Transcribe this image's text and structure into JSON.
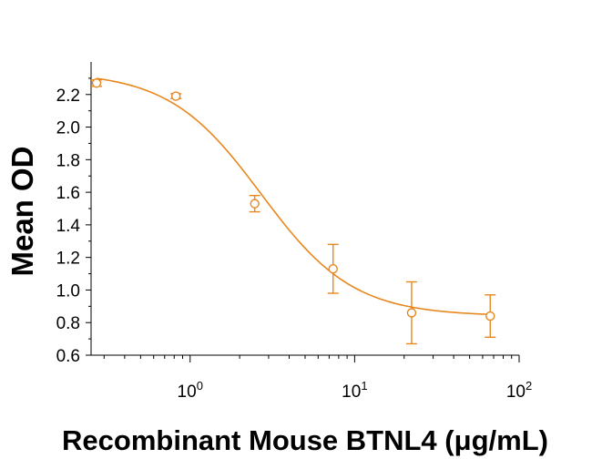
{
  "chart_data": {
    "type": "scatter",
    "xlabel": "Recombinant Mouse BTNL4 (μg/mL)",
    "ylabel": "Mean OD",
    "x_scale": "log",
    "xlim": [
      0.25,
      100
    ],
    "ylim": [
      0.6,
      2.4
    ],
    "grid": false,
    "color": "#E8871E",
    "x_ticks": [
      {
        "value": 1,
        "base": "10",
        "exp": "0"
      },
      {
        "value": 10,
        "base": "10",
        "exp": "1"
      },
      {
        "value": 100,
        "base": "10",
        "exp": "2"
      }
    ],
    "y_ticks": [
      "0.6",
      "0.8",
      "1.0",
      "1.2",
      "1.4",
      "1.6",
      "1.8",
      "2.0",
      "2.2"
    ],
    "series": [
      {
        "points": [
          {
            "x": 0.27,
            "y": 2.27,
            "err": 0.02
          },
          {
            "x": 0.82,
            "y": 2.19,
            "err": 0.015
          },
          {
            "x": 2.47,
            "y": 1.53,
            "err": 0.05
          },
          {
            "x": 7.4,
            "y": 1.13,
            "err": 0.15
          },
          {
            "x": 22.2,
            "y": 0.86,
            "err": 0.19
          },
          {
            "x": 66.7,
            "y": 0.84,
            "err": 0.13
          }
        ],
        "fit": {
          "bottom": 0.84,
          "top": 2.34,
          "ec50": 2.7,
          "hill": 1.55
        }
      }
    ]
  }
}
